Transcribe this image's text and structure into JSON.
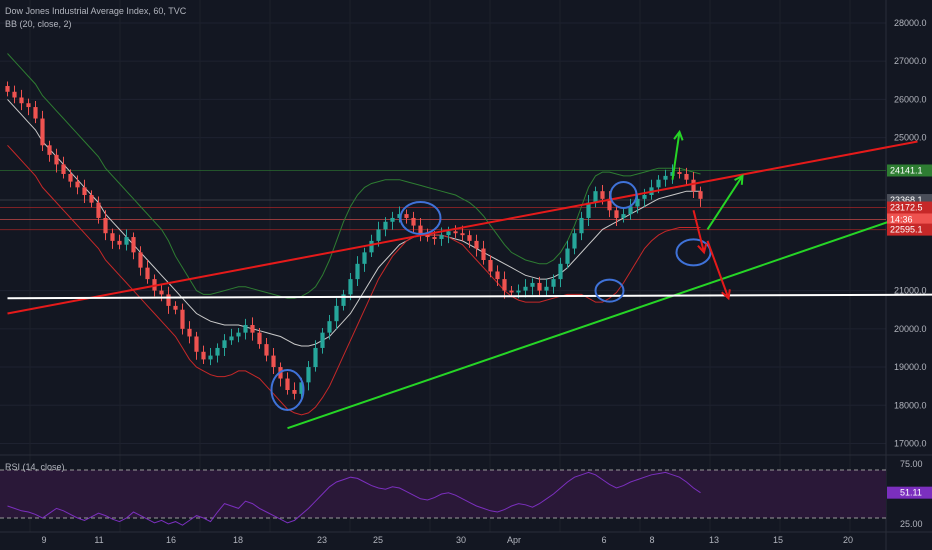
{
  "header": {
    "symbol_line": "Dow Jones Industrial Average Index, 60, TVC",
    "bb_line": "BB (20, close, 2)",
    "rsi_line": "RSI (14, close)"
  },
  "colors": {
    "background": "#131722",
    "up_candle": "#26a69a",
    "down_candle": "#ef5350",
    "bb_middle": "#c9c9c9",
    "bb_upper": "#2e7d32",
    "bb_lower": "#c62828",
    "rsi_line": "#7b2fbe",
    "rsi_band": "#2a1838",
    "support_line": "#26d526",
    "resistance_line": "#e51a1a",
    "horizontal_line": "#ffffff",
    "annotation_circle": "#3f72d8"
  },
  "chart_data": {
    "type": "candlestick",
    "main_axis": {
      "ylim": [
        16700,
        28600
      ],
      "ticks": [
        "28000.0",
        "27000.0",
        "26000.0",
        "25000.0",
        "21000.0",
        "20000.0",
        "19000.0",
        "18000.0",
        "17000.0"
      ]
    },
    "x_ticks": [
      "9",
      "11",
      "16",
      "18",
      "23",
      "25",
      "30",
      "Apr",
      "6",
      "8",
      "13",
      "15",
      "20"
    ],
    "price_labels": [
      {
        "text": "24141.1",
        "value": 24141.1,
        "color": "#2e7d32"
      },
      {
        "text": "23368.1",
        "value": 23368.1,
        "color": "#4a4e59"
      },
      {
        "text": "23172.5",
        "value": 23172.5,
        "color": "#c62828"
      },
      {
        "text": "14:36",
        "value": 22860,
        "color": "#ef5350"
      },
      {
        "text": "22595.1",
        "value": 22595.1,
        "color": "#c62828"
      }
    ],
    "closes": [
      26200,
      26050,
      25900,
      25800,
      25500,
      24800,
      24550,
      24300,
      24050,
      23850,
      23700,
      23500,
      23300,
      22900,
      22500,
      22300,
      22200,
      22400,
      22000,
      21600,
      21300,
      21000,
      20900,
      20600,
      20500,
      20000,
      19800,
      19400,
      19200,
      19300,
      19500,
      19700,
      19800,
      19900,
      20100,
      19900,
      19600,
      19300,
      19000,
      18700,
      18400,
      18300,
      18600,
      19000,
      19500,
      19900,
      20200,
      20600,
      20900,
      21300,
      21700,
      22000,
      22300,
      22600,
      22800,
      22900,
      23000,
      22900,
      22700,
      22500,
      22400,
      22350,
      22450,
      22550,
      22500,
      22450,
      22300,
      22100,
      21800,
      21500,
      21300,
      21000,
      20950,
      21000,
      21100,
      21200,
      21000,
      21100,
      21300,
      21700,
      22100,
      22500,
      22900,
      23300,
      23600,
      23400,
      23100,
      22900,
      23000,
      23200,
      23400,
      23500,
      23700,
      23900,
      24000,
      24100,
      24050,
      23900,
      23600,
      23400
    ],
    "bb_middle": [
      26000,
      25800,
      25600,
      25400,
      25200,
      24900,
      24700,
      24500,
      24300,
      24100,
      23900,
      23700,
      23500,
      23300,
      23000,
      22800,
      22600,
      22400,
      22200,
      22000,
      21800,
      21600,
      21400,
      21200,
      21000,
      20800,
      20600,
      20400,
      20300,
      20200,
      20150,
      20100,
      20100,
      20100,
      20050,
      20000,
      19950,
      19900,
      19850,
      19800,
      19700,
      19600,
      19550,
      19550,
      19600,
      19700,
      19800,
      20000,
      20200,
      20400,
      20700,
      21000,
      21300,
      21600,
      21800,
      22000,
      22200,
      22300,
      22400,
      22450,
      22450,
      22450,
      22450,
      22400,
      22350,
      22300,
      22200,
      22100,
      22000,
      21900,
      21800,
      21700,
      21600,
      21500,
      21400,
      21350,
      21300,
      21300,
      21350,
      21450,
      21600,
      21800,
      22000,
      22200,
      22400,
      22600,
      22700,
      22800,
      22900,
      23000,
      23100,
      23200,
      23300,
      23400,
      23450,
      23500,
      23550,
      23600,
      23600,
      23600
    ],
    "bb_upper": [
      27200,
      27000,
      26800,
      26600,
      26400,
      26100,
      25900,
      25700,
      25500,
      25300,
      25100,
      24900,
      24700,
      24500,
      24200,
      24000,
      23800,
      23600,
      23400,
      23200,
      23000,
      22800,
      22600,
      22300,
      21900,
      21600,
      21300,
      21000,
      20900,
      20900,
      20950,
      21000,
      21050,
      21100,
      21100,
      21050,
      21000,
      20950,
      20900,
      20850,
      20800,
      20800,
      20850,
      20950,
      21100,
      21400,
      21800,
      22300,
      22800,
      23200,
      23500,
      23700,
      23800,
      23850,
      23900,
      23900,
      23900,
      23850,
      23800,
      23750,
      23700,
      23650,
      23600,
      23550,
      23500,
      23400,
      23300,
      23150,
      22950,
      22700,
      22450,
      22200,
      22000,
      21900,
      21800,
      21750,
      21700,
      21700,
      21800,
      22000,
      22300,
      22700,
      23200,
      23700,
      24000,
      24100,
      24100,
      24050,
      24000,
      24000,
      24050,
      24100,
      24150,
      24200,
      24200,
      24200,
      24200,
      24150,
      24100,
      24050
    ],
    "bb_lower": [
      24800,
      24600,
      24400,
      24200,
      24000,
      23700,
      23500,
      23300,
      23100,
      22900,
      22700,
      22500,
      22300,
      22100,
      21800,
      21600,
      21400,
      21200,
      21000,
      20800,
      20600,
      20400,
      20200,
      20000,
      19800,
      19500,
      19200,
      19000,
      18900,
      18800,
      18750,
      18750,
      18800,
      18900,
      18900,
      18800,
      18700,
      18500,
      18300,
      18100,
      17900,
      17800,
      17750,
      17800,
      17950,
      18200,
      18500,
      18900,
      19300,
      19700,
      20100,
      20500,
      20900,
      21300,
      21600,
      21900,
      22100,
      22300,
      22400,
      22450,
      22450,
      22450,
      22450,
      22400,
      22300,
      22200,
      22000,
      21800,
      21600,
      21400,
      21200,
      21000,
      20850,
      20750,
      20700,
      20700,
      20700,
      20750,
      20800,
      20850,
      20900,
      20900,
      20900,
      20800,
      20700,
      20700,
      20800,
      20950,
      21200,
      21500,
      21800,
      22100,
      22300,
      22450,
      22550,
      22600,
      22650,
      22650,
      22650,
      22650
    ],
    "rsi": {
      "ylim": [
        20,
        80
      ],
      "ticks": [
        "75.00",
        "25.00"
      ],
      "current_label": "51.11",
      "current": 51.11,
      "levels": [
        70,
        30
      ],
      "values": [
        40,
        38,
        36,
        35,
        33,
        30,
        34,
        38,
        36,
        33,
        30,
        28,
        31,
        34,
        32,
        29,
        27,
        30,
        35,
        32,
        29,
        26,
        28,
        25,
        27,
        24,
        28,
        32,
        30,
        27,
        35,
        42,
        40,
        38,
        44,
        42,
        38,
        35,
        32,
        29,
        26,
        28,
        33,
        38,
        44,
        50,
        56,
        60,
        62,
        64,
        63,
        60,
        57,
        55,
        54,
        56,
        55,
        52,
        49,
        46,
        45,
        47,
        50,
        51,
        49,
        46,
        43,
        40,
        38,
        36,
        35,
        37,
        40,
        42,
        41,
        39,
        42,
        46,
        50,
        55,
        60,
        64,
        66,
        68,
        66,
        62,
        58,
        55,
        57,
        60,
        62,
        64,
        66,
        67,
        68,
        66,
        64,
        60,
        55,
        51.11
      ]
    },
    "trendlines": [
      {
        "name": "resistance",
        "color": "#e51a1a",
        "from": [
          0,
          20400
        ],
        "to": [
          130,
          24900
        ]
      },
      {
        "name": "support",
        "color": "#26d526",
        "from": [
          40,
          17400
        ],
        "to": [
          137,
          23500
        ]
      },
      {
        "name": "horizontal",
        "color": "#ffffff",
        "from": [
          0,
          20800
        ],
        "to": [
          141,
          20900
        ]
      }
    ]
  }
}
